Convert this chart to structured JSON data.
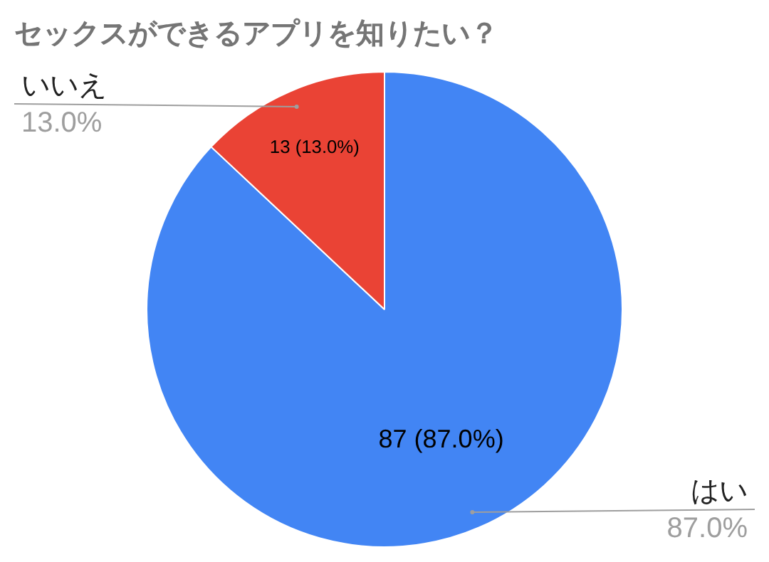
{
  "chart_data": {
    "type": "pie",
    "title": "セックスができるアプリを知りたい？",
    "categories": [
      "はい",
      "いいえ"
    ],
    "values": [
      87,
      13
    ],
    "colors": [
      "#4285f4",
      "#ea4335"
    ],
    "value_labels": [
      "87 (87.0%)",
      "13 (13.0%)"
    ],
    "annotations": [
      {
        "text": "87.0%",
        "x": "はい"
      },
      {
        "text": "13.0%",
        "x": "いいえ"
      }
    ],
    "legend": false
  }
}
